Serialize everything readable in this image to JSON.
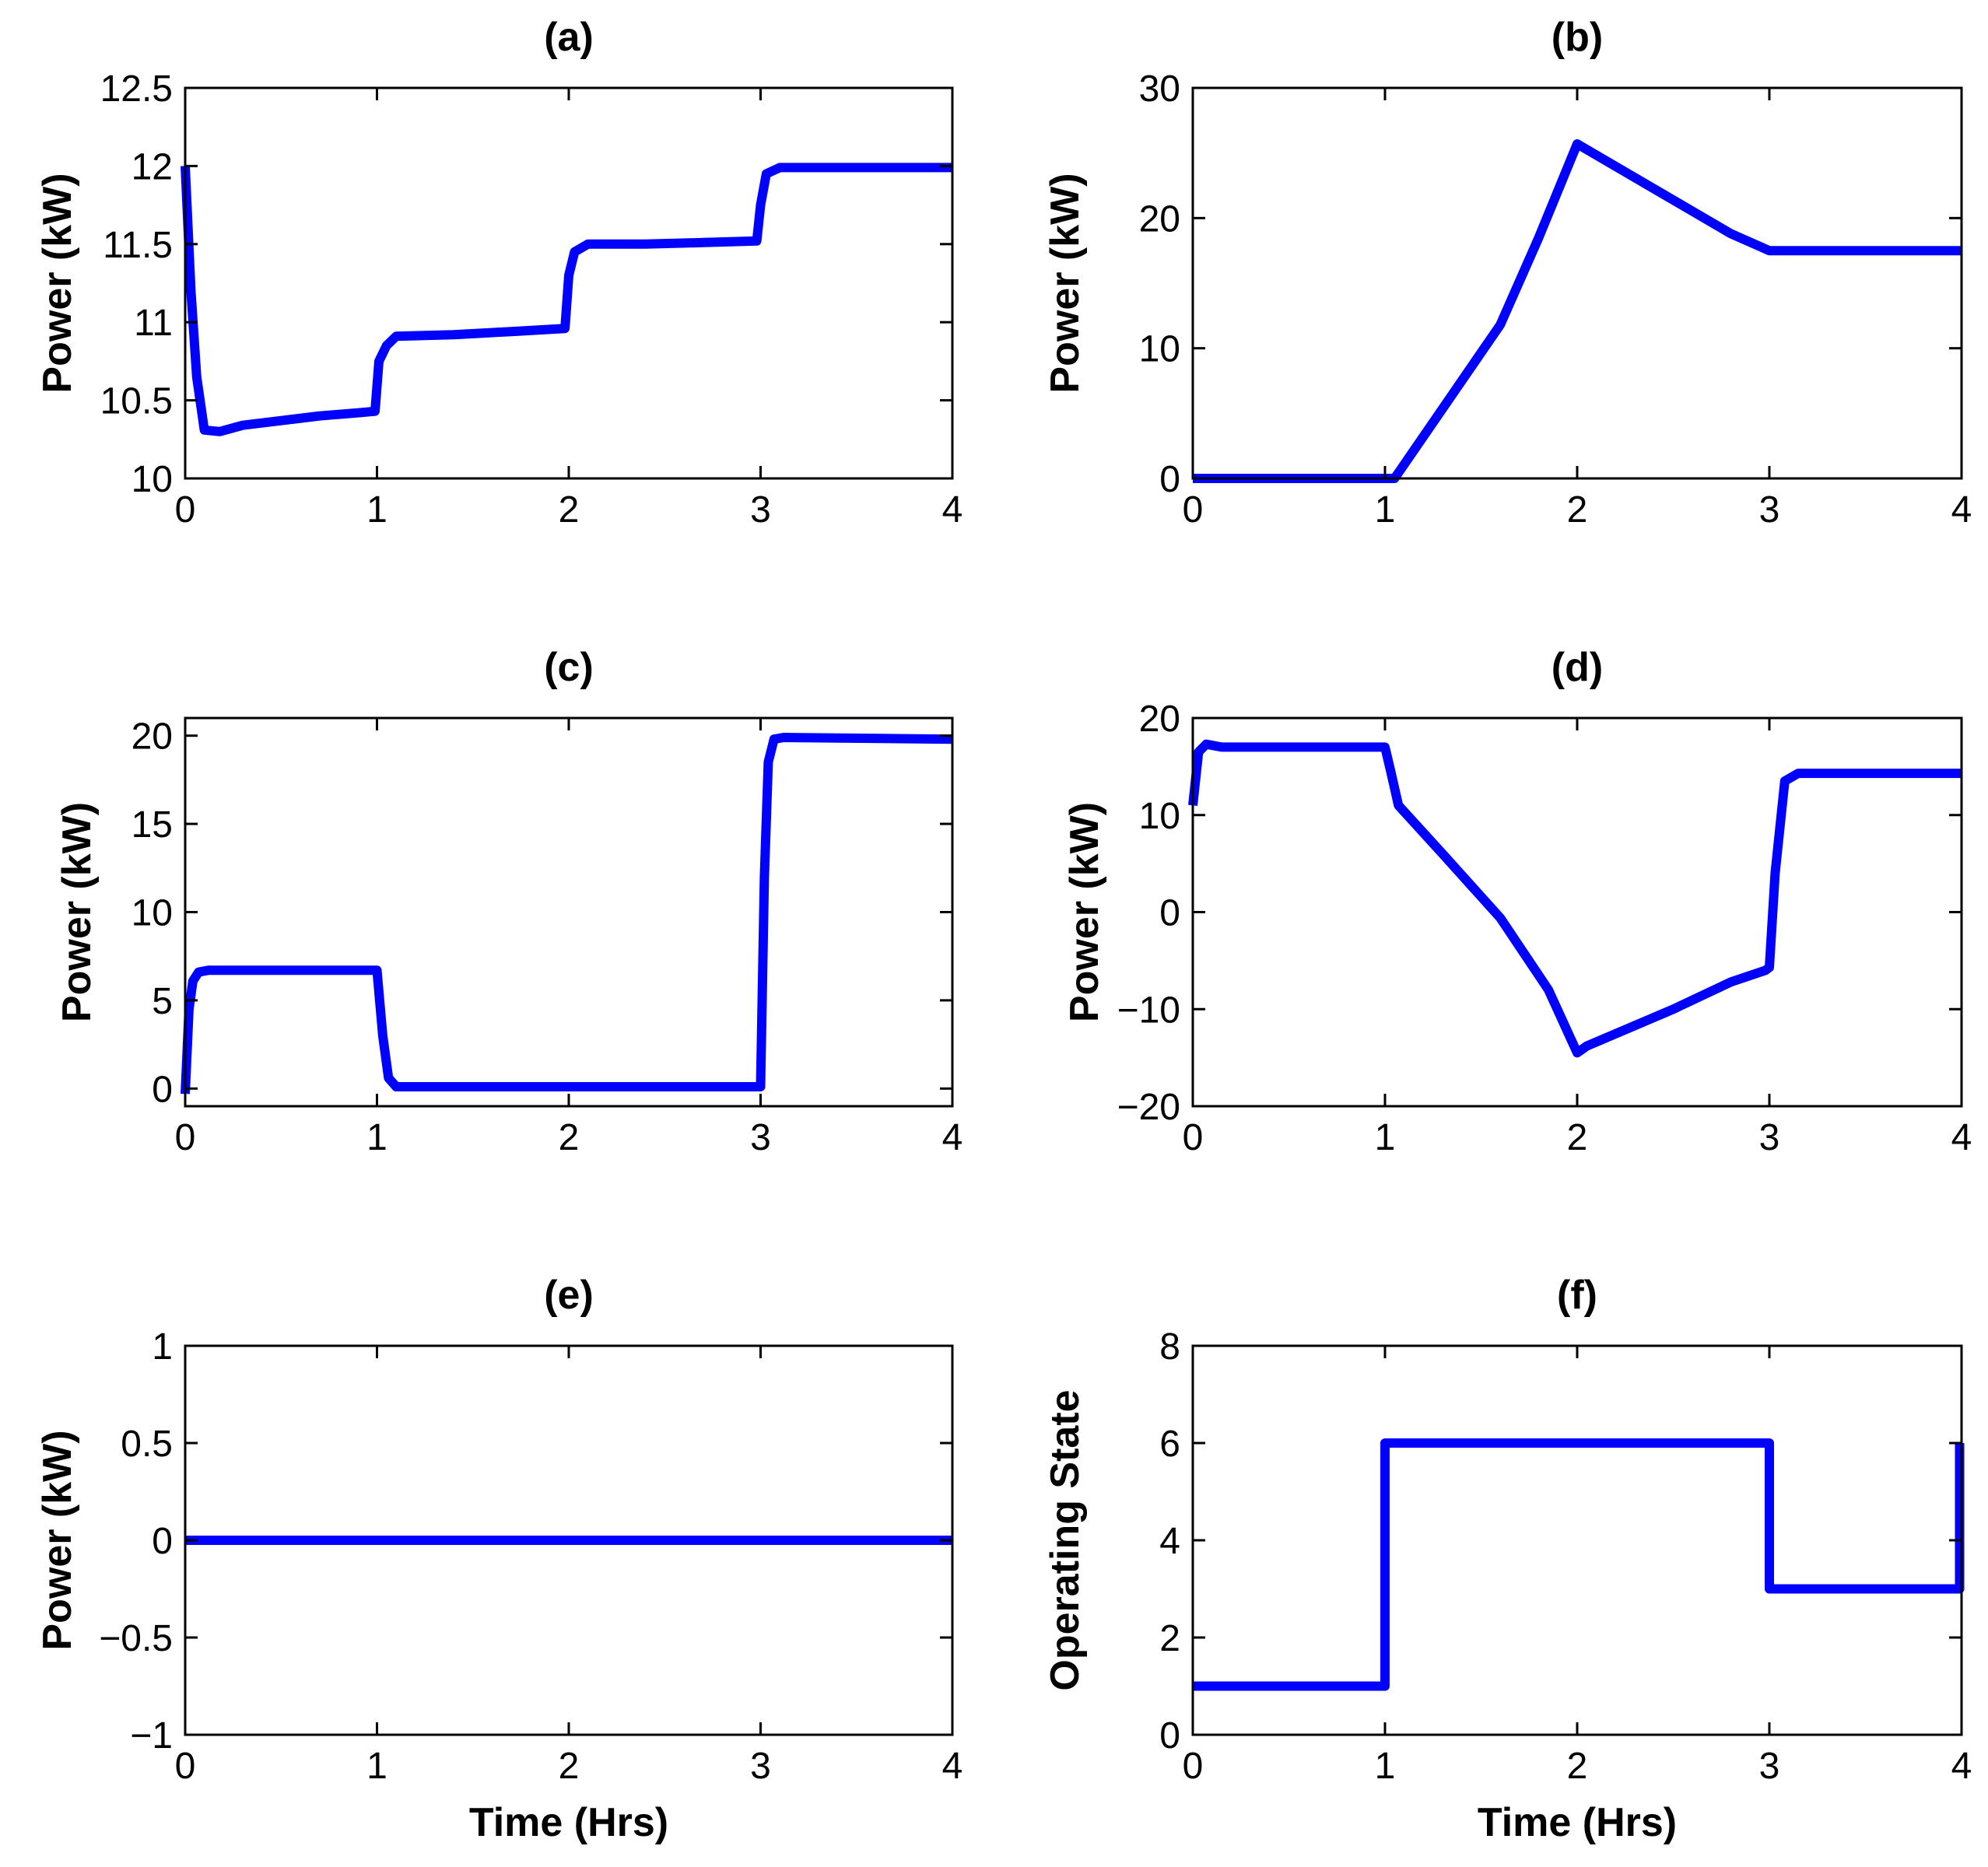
{
  "chart_data": [
    {
      "type": "line",
      "title": "(a)",
      "xlabel": "",
      "ylabel": "Power (kW)",
      "xlim": [
        0,
        4
      ],
      "ylim": [
        10,
        12.5
      ],
      "xticks": [
        0,
        1,
        2,
        3,
        4
      ],
      "xtick_labels": [
        "0",
        "1",
        "2",
        "3",
        "4"
      ],
      "yticks": [
        10,
        10.5,
        11,
        11.5,
        12,
        12.5
      ],
      "ytick_labels": [
        "10",
        "10.5",
        "11",
        "11.5",
        "12",
        "12.5"
      ],
      "series": [
        {
          "name": "Power",
          "color": "#0000ff",
          "x": [
            0,
            0.03,
            0.06,
            0.1,
            0.18,
            0.3,
            0.5,
            0.7,
            0.9,
            0.99,
            1.01,
            1.05,
            1.1,
            1.4,
            1.7,
            1.98,
            2.0,
            2.03,
            2.1,
            2.4,
            2.7,
            2.98,
            3.0,
            3.03,
            3.1,
            3.5,
            4.0
          ],
          "y": [
            12.0,
            11.2,
            10.65,
            10.31,
            10.3,
            10.34,
            10.37,
            10.4,
            10.42,
            10.43,
            10.75,
            10.85,
            10.91,
            10.92,
            10.94,
            10.96,
            11.3,
            11.45,
            11.5,
            11.5,
            11.51,
            11.52,
            11.75,
            11.95,
            11.99,
            11.99,
            11.99
          ]
        }
      ]
    },
    {
      "type": "line",
      "title": "(b)",
      "xlabel": "",
      "ylabel": "Power (kW)",
      "xlim": [
        0,
        4
      ],
      "ylim": [
        0,
        30
      ],
      "xticks": [
        0,
        1,
        2,
        3,
        4
      ],
      "xtick_labels": [
        "0",
        "1",
        "2",
        "3",
        "4"
      ],
      "yticks": [
        0,
        10,
        20,
        30
      ],
      "ytick_labels": [
        "0",
        "10",
        "20",
        "30"
      ],
      "series": [
        {
          "name": "Power",
          "color": "#0000ff",
          "x": [
            0,
            1.05,
            1.6,
            1.8,
            2.0,
            2.8,
            3.0,
            4.0
          ],
          "y": [
            0,
            0,
            11.8,
            18.5,
            25.7,
            18.8,
            17.5,
            17.5
          ]
        }
      ]
    },
    {
      "type": "line",
      "title": "(c)",
      "xlabel": "",
      "ylabel": "Power (kW)",
      "xlim": [
        0,
        4
      ],
      "ylim": [
        -1,
        21
      ],
      "xticks": [
        0,
        1,
        2,
        3,
        4
      ],
      "xtick_labels": [
        "0",
        "1",
        "2",
        "3",
        "4"
      ],
      "yticks": [
        0,
        5,
        10,
        15,
        20
      ],
      "ytick_labels": [
        "0",
        "5",
        "10",
        "15",
        "20"
      ],
      "series": [
        {
          "name": "Power",
          "color": "#0000ff",
          "x": [
            0,
            0.02,
            0.04,
            0.07,
            0.12,
            1.0,
            1.03,
            1.06,
            1.1,
            3.0,
            3.02,
            3.04,
            3.07,
            3.12,
            4.0
          ],
          "y": [
            -0.3,
            4.5,
            6.1,
            6.6,
            6.7,
            6.7,
            3.0,
            0.6,
            0.1,
            0.1,
            12.0,
            18.5,
            19.8,
            19.9,
            19.8
          ]
        }
      ]
    },
    {
      "type": "line",
      "title": "(d)",
      "xlabel": "",
      "ylabel": "Power (kW)",
      "xlim": [
        0,
        4
      ],
      "ylim": [
        -20,
        20
      ],
      "xticks": [
        0,
        1,
        2,
        3,
        4
      ],
      "xtick_labels": [
        "0",
        "1",
        "2",
        "3",
        "4"
      ],
      "yticks": [
        -20,
        -10,
        0,
        10,
        20
      ],
      "ytick_labels": [
        "−20",
        "−10",
        "0",
        "10",
        "20"
      ],
      "series": [
        {
          "name": "Power",
          "color": "#0000ff",
          "x": [
            0,
            0.03,
            0.07,
            0.15,
            1.0,
            1.03,
            1.07,
            1.3,
            1.6,
            1.85,
            2.0,
            2.05,
            2.5,
            2.8,
            2.98,
            3.0,
            3.03,
            3.08,
            3.15,
            4.0
          ],
          "y": [
            11.0,
            16.5,
            17.3,
            17.0,
            17.0,
            14.5,
            11.0,
            6.0,
            -0.6,
            -8.0,
            -14.5,
            -13.8,
            -10.0,
            -7.2,
            -6.0,
            -5.7,
            4.0,
            13.5,
            14.3,
            14.3
          ]
        }
      ]
    },
    {
      "type": "line",
      "title": "(e)",
      "xlabel": "Time (Hrs)",
      "ylabel": "Power (kW)",
      "xlim": [
        0,
        4
      ],
      "ylim": [
        -1,
        1
      ],
      "xticks": [
        0,
        1,
        2,
        3,
        4
      ],
      "xtick_labels": [
        "0",
        "1",
        "2",
        "3",
        "4"
      ],
      "yticks": [
        -1,
        -0.5,
        0,
        0.5,
        1
      ],
      "ytick_labels": [
        "−1",
        "−0.5",
        "0",
        "0.5",
        "1"
      ],
      "series": [
        {
          "name": "Power",
          "color": "#0000ff",
          "x": [
            0,
            4
          ],
          "y": [
            0,
            0
          ]
        }
      ]
    },
    {
      "type": "line",
      "title": "(f)",
      "xlabel": "Time (Hrs)",
      "ylabel": "Operating State",
      "xlim": [
        0,
        4
      ],
      "ylim": [
        0,
        8
      ],
      "xticks": [
        0,
        1,
        2,
        3,
        4
      ],
      "xtick_labels": [
        "0",
        "1",
        "2",
        "3",
        "4"
      ],
      "yticks": [
        0,
        2,
        4,
        6,
        8
      ],
      "ytick_labels": [
        "0",
        "2",
        "4",
        "6",
        "8"
      ],
      "series": [
        {
          "name": "Operating State",
          "color": "#0000ff",
          "x": [
            0,
            1,
            1,
            3,
            3,
            3.99,
            3.99
          ],
          "y": [
            1,
            1,
            6,
            6,
            3,
            3,
            6
          ]
        }
      ]
    }
  ]
}
